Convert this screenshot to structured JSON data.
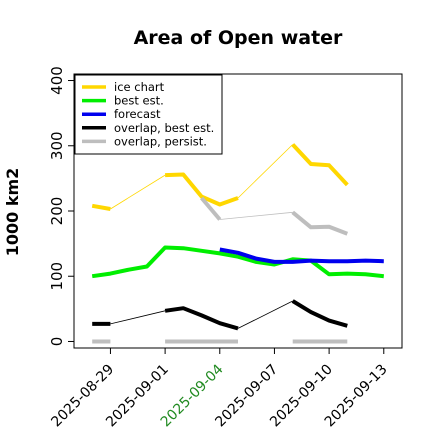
{
  "chart_data": {
    "type": "line",
    "title": "Area of Open water",
    "ylabel": "1000 km2",
    "xlabel": "",
    "ylim": [
      -10,
      410
    ],
    "yticks": [
      0,
      100,
      200,
      300,
      400
    ],
    "xlim": [
      "2025-08-27",
      "2025-09-14"
    ],
    "xtick_labels": [
      "2025-08-29",
      "2025-09-01",
      "2025-09-04",
      "2025-09-07",
      "2025-09-10",
      "2025-09-13"
    ],
    "highlighted_tick": "2025-09-04",
    "highlight_color": "#228B22",
    "legend_position": "top-left",
    "series": [
      {
        "name": "ice chart",
        "color": "#FFD700",
        "segments": [
          {
            "style": "thick",
            "x": [
              "2025-08-28",
              "2025-08-29"
            ],
            "y": [
              208,
              203
            ]
          },
          {
            "style": "thin",
            "x": [
              "2025-08-29",
              "2025-09-01"
            ],
            "y": [
              203,
              255
            ]
          },
          {
            "style": "thick",
            "x": [
              "2025-09-01",
              "2025-09-02",
              "2025-09-03",
              "2025-09-04",
              "2025-09-05"
            ],
            "y": [
              255,
              256,
              222,
              210,
              220
            ]
          },
          {
            "style": "thin",
            "x": [
              "2025-09-05",
              "2025-09-08"
            ],
            "y": [
              220,
              302
            ]
          },
          {
            "style": "thick",
            "x": [
              "2025-09-08",
              "2025-09-09",
              "2025-09-10",
              "2025-09-11"
            ],
            "y": [
              302,
              272,
              270,
              240
            ]
          }
        ]
      },
      {
        "name": "best est.",
        "color": "#00EE00",
        "segments": [
          {
            "style": "thick",
            "x": [
              "2025-08-28",
              "2025-08-29",
              "2025-08-30",
              "2025-08-31",
              "2025-09-01",
              "2025-09-02",
              "2025-09-03",
              "2025-09-04",
              "2025-09-05",
              "2025-09-06",
              "2025-09-07",
              "2025-09-08",
              "2025-09-09",
              "2025-09-10",
              "2025-09-11",
              "2025-09-12",
              "2025-09-13"
            ],
            "y": [
              100,
              104,
              110,
              115,
              144,
              143,
              139,
              135,
              130,
              122,
              118,
              126,
              124,
              103,
              104,
              103,
              100
            ]
          }
        ]
      },
      {
        "name": "forecast",
        "color": "#0000EE",
        "segments": [
          {
            "style": "thick",
            "x": [
              "2025-09-04",
              "2025-09-05",
              "2025-09-06",
              "2025-09-07",
              "2025-09-08",
              "2025-09-09",
              "2025-09-10",
              "2025-09-11",
              "2025-09-12",
              "2025-09-13"
            ],
            "y": [
              141,
              136,
              127,
              122,
              122,
              124,
              123,
              123,
              124,
              123
            ]
          }
        ]
      },
      {
        "name": "overlap, best est.",
        "color": "#000000",
        "segments": [
          {
            "style": "thick",
            "x": [
              "2025-08-28",
              "2025-08-29"
            ],
            "y": [
              27,
              27
            ]
          },
          {
            "style": "thin",
            "x": [
              "2025-08-29",
              "2025-09-01"
            ],
            "y": [
              27,
              47
            ]
          },
          {
            "style": "thick",
            "x": [
              "2025-09-01",
              "2025-09-02",
              "2025-09-03",
              "2025-09-04",
              "2025-09-05"
            ],
            "y": [
              47,
              51,
              40,
              28,
              20
            ]
          },
          {
            "style": "thin",
            "x": [
              "2025-09-05",
              "2025-09-08"
            ],
            "y": [
              20,
              62
            ]
          },
          {
            "style": "thick",
            "x": [
              "2025-09-08",
              "2025-09-09",
              "2025-09-10",
              "2025-09-11"
            ],
            "y": [
              62,
              45,
              32,
              24
            ]
          }
        ]
      },
      {
        "name": "overlap, persist.",
        "color": "#BEBEBE",
        "segments": [
          {
            "style": "thick",
            "x": [
              "2025-09-03",
              "2025-09-04"
            ],
            "y": [
              220,
              187
            ]
          },
          {
            "style": "thin",
            "x": [
              "2025-09-04",
              "2025-09-08"
            ],
            "y": [
              187,
              198
            ]
          },
          {
            "style": "thick",
            "x": [
              "2025-09-08",
              "2025-09-09",
              "2025-09-10",
              "2025-09-11"
            ],
            "y": [
              198,
              175,
              176,
              165
            ]
          },
          {
            "style": "thick",
            "x": [
              "2025-08-28",
              "2025-08-29"
            ],
            "y": [
              0,
              0
            ]
          },
          {
            "style": "thick",
            "x": [
              "2025-09-01",
              "2025-09-05"
            ],
            "y": [
              0,
              0
            ]
          },
          {
            "style": "thick",
            "x": [
              "2025-09-08",
              "2025-09-11"
            ],
            "y": [
              0,
              0
            ]
          }
        ]
      }
    ]
  }
}
